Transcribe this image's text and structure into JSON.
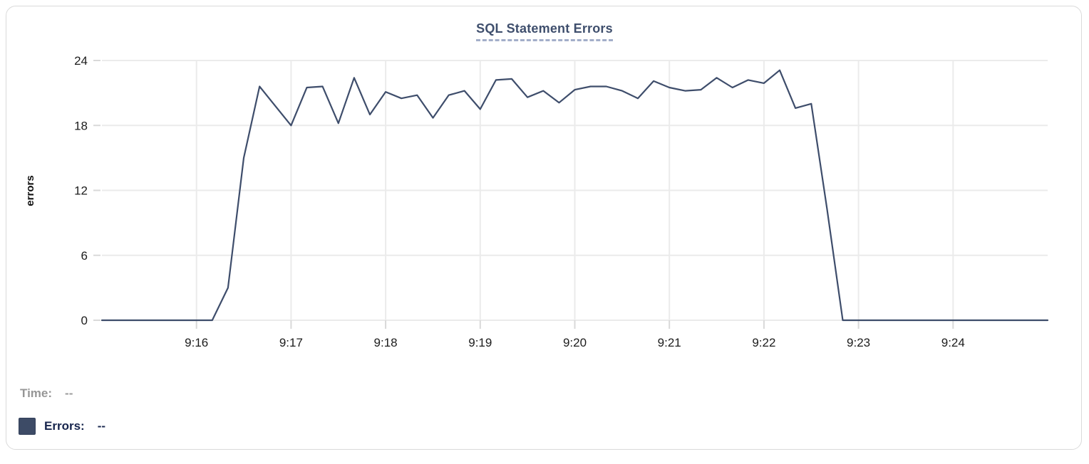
{
  "title": {
    "text": "SQL Statement Errors"
  },
  "readout": {
    "time_label": "Time:",
    "time_value": "--",
    "errors_label": "Errors:",
    "errors_value": "--",
    "swatch_color": "#3d4b66"
  },
  "colors": {
    "line": "#3e4d6b",
    "title": "#3f4f6d",
    "title_underline": "#a3aec9",
    "grid": "#ebebeb",
    "tick": "#d9d9d9",
    "axis_text": "#1c1c1c",
    "card_border": "#dadada"
  },
  "chart_data": {
    "type": "line",
    "title": "SQL Statement Errors",
    "xlabel": "",
    "ylabel": "errors",
    "x_start": "9:15:00",
    "x_end": "9:25:00",
    "interval_seconds": 10,
    "ylim": [
      0,
      24
    ],
    "y_ticks": [
      0,
      6,
      12,
      18,
      24
    ],
    "x_ticks": [
      {
        "label": "9:16",
        "t": 60
      },
      {
        "label": "9:17",
        "t": 120
      },
      {
        "label": "9:18",
        "t": 180
      },
      {
        "label": "9:19",
        "t": 240
      },
      {
        "label": "9:20",
        "t": 300
      },
      {
        "label": "9:21",
        "t": 360
      },
      {
        "label": "9:22",
        "t": 420
      },
      {
        "label": "9:23",
        "t": 480
      },
      {
        "label": "9:24",
        "t": 540
      }
    ],
    "grid": true,
    "legend_position": "bottom-left",
    "series": [
      {
        "name": "Errors",
        "color": "#3e4d6b",
        "values": [
          0,
          0,
          0,
          0,
          0,
          0,
          0,
          0,
          3,
          15,
          21.6,
          19.8,
          18,
          21.5,
          21.6,
          18.2,
          22.4,
          19,
          21.1,
          20.5,
          20.8,
          18.7,
          20.8,
          21.2,
          19.5,
          22.2,
          22.3,
          20.6,
          21.2,
          20.1,
          21.3,
          21.6,
          21.6,
          21.2,
          20.5,
          22.1,
          21.5,
          21.2,
          21.3,
          22.4,
          21.5,
          22.2,
          21.9,
          23.1,
          19.6,
          20,
          10.3,
          0,
          0,
          0,
          0,
          0,
          0,
          0,
          0,
          0,
          0,
          0,
          0,
          0,
          0
        ]
      }
    ]
  }
}
